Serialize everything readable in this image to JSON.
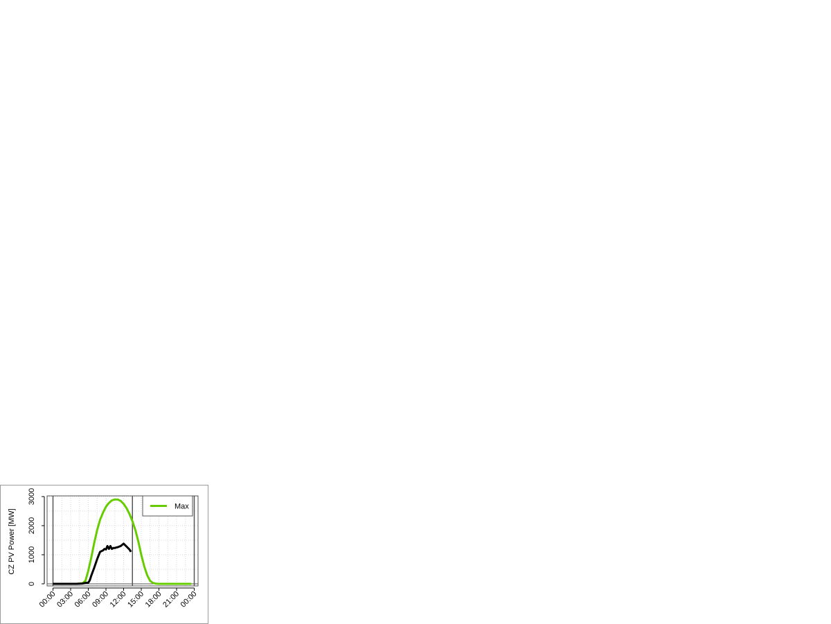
{
  "chart_data": {
    "type": "line",
    "title": "",
    "xlabel": "",
    "ylabel": "CZ PV Power [MW]",
    "xlim": [
      0,
      24
    ],
    "ylim": [
      0,
      3000
    ],
    "x_ticks": [
      "00:00",
      "03:00",
      "06:00",
      "09:00",
      "12:00",
      "15:00",
      "18:00",
      "21:00",
      "00:00"
    ],
    "y_ticks": [
      "0",
      "1000",
      "2000",
      "3000"
    ],
    "grid": true,
    "legend": {
      "placement": "top-right",
      "entries": [
        "Max"
      ]
    },
    "vertical_lines_hours": [
      0,
      13.5,
      24
    ],
    "series": [
      {
        "name": "Max",
        "color": "#66cc00",
        "x": [
          0,
          1,
          2,
          3,
          4,
          5,
          5.5,
          6,
          6.5,
          7,
          7.5,
          8,
          8.5,
          9,
          9.5,
          10,
          10.5,
          11,
          11.5,
          12,
          12.5,
          13,
          13.5,
          14,
          14.5,
          15,
          15.5,
          16,
          16.5,
          17,
          17.5,
          18,
          19,
          20,
          21,
          22,
          23,
          23.5
        ],
        "y": [
          0,
          0,
          0,
          0,
          0,
          20,
          100,
          450,
          900,
          1400,
          1850,
          2200,
          2450,
          2650,
          2780,
          2870,
          2900,
          2900,
          2850,
          2750,
          2600,
          2400,
          2150,
          1850,
          1450,
          1000,
          600,
          300,
          100,
          30,
          5,
          0,
          0,
          0,
          0,
          0,
          0,
          0
        ]
      },
      {
        "color": "#000000",
        "x": [
          0,
          1,
          2,
          3,
          4,
          5,
          5.5,
          6,
          6.25,
          6.5,
          7,
          7.5,
          8,
          8.5,
          8.75,
          9,
          9.25,
          9.5,
          9.75,
          10,
          10.25,
          10.5,
          10.75,
          11,
          11.5,
          12,
          12.5,
          13,
          13.25
        ],
        "y": [
          0,
          0,
          0,
          0,
          0,
          10,
          30,
          40,
          120,
          280,
          550,
          850,
          1100,
          1150,
          1200,
          1180,
          1300,
          1200,
          1300,
          1200,
          1230,
          1230,
          1250,
          1260,
          1300,
          1380,
          1280,
          1180,
          1100
        ]
      }
    ]
  }
}
